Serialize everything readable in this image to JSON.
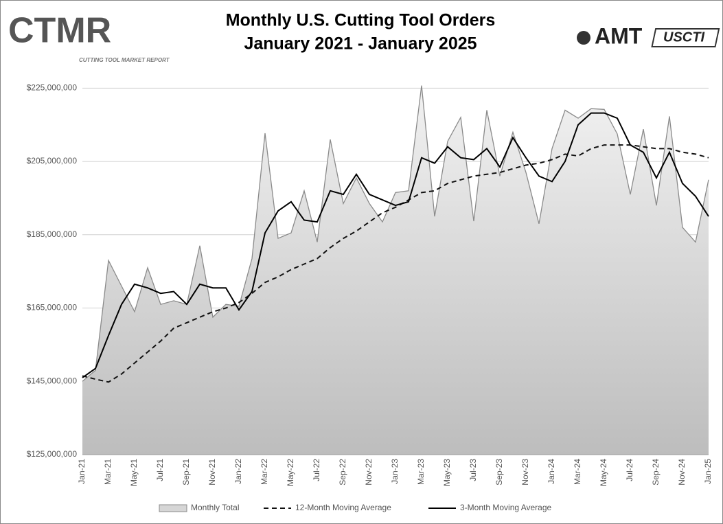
{
  "logos": {
    "left": "CTMR",
    "left_sub": "CUTTING TOOL MARKET REPORT",
    "right_1": "AMT",
    "right_2": "USCTI"
  },
  "chart_data": {
    "type": "line",
    "title": [
      "Monthly U.S. Cutting Tool Orders",
      "January 2021 - January 2025"
    ],
    "categories": [
      "Jan-21",
      null,
      "Mar-21",
      null,
      "May-21",
      null,
      "Jul-21",
      null,
      "Sep-21",
      null,
      "Nov-21",
      null,
      "Jan-22",
      null,
      "Mar-22",
      null,
      "May-22",
      null,
      "Jul-22",
      null,
      "Sep-22",
      null,
      "Nov-22",
      null,
      "Jan-23",
      null,
      "Mar-23",
      null,
      "May-23",
      null,
      "Jul-23",
      null,
      "Sep-23",
      null,
      "Nov-23",
      null,
      "Jan-24",
      null,
      "Mar-24",
      null,
      "May-24",
      null,
      "Jul-24",
      null,
      "Sep-24",
      null,
      "Nov-24",
      null,
      "Jan-25"
    ],
    "series": [
      {
        "name": "Monthly Total",
        "style": "area",
        "color": "#8a8a8a",
        "values": [
          145000000,
          148000000,
          178000000,
          171000000,
          164000000,
          176000000,
          166000000,
          167000000,
          166000000,
          182000000,
          162500000,
          166000000,
          165500000,
          178500000,
          212700000,
          184000000,
          185500000,
          197000000,
          183000000,
          211000000,
          193500000,
          200500000,
          193500000,
          188500000,
          196500000,
          197000000,
          225700000,
          190000000,
          210500000,
          217000000,
          188700000,
          219000000,
          201000000,
          213000000,
          202000000,
          188000000,
          208500000,
          219000000,
          216800000,
          219400000,
          219200000,
          212500000,
          196000000,
          213800000,
          193000000,
          217300000,
          187000000,
          183000000,
          200000000
        ]
      },
      {
        "name": "12-Month Moving Average",
        "style": "dashed",
        "color": "#111111",
        "values": [
          146500000,
          145600000,
          144800000,
          147000000,
          150000000,
          153000000,
          156000000,
          159500000,
          161000000,
          162500000,
          164000000,
          165000000,
          166500000,
          169000000,
          172000000,
          173500000,
          175500000,
          177000000,
          178500000,
          181500000,
          184000000,
          186000000,
          188500000,
          191000000,
          192500000,
          194500000,
          196500000,
          197000000,
          199000000,
          200000000,
          201000000,
          201500000,
          202000000,
          203000000,
          204000000,
          204500000,
          205500000,
          207000000,
          206500000,
          208500000,
          209500000,
          209500000,
          209500000,
          209000000,
          208500000,
          208500000,
          207500000,
          207000000,
          206000000
        ]
      },
      {
        "name": "3-Month Moving Average",
        "style": "solid",
        "color": "#000000",
        "values": [
          146000000,
          148500000,
          157500000,
          166000000,
          171500000,
          170500000,
          169000000,
          169500000,
          166000000,
          171500000,
          170500000,
          170500000,
          164500000,
          169500000,
          185500000,
          191500000,
          194000000,
          189000000,
          188500000,
          197000000,
          196000000,
          201500000,
          196000000,
          194500000,
          193000000,
          194000000,
          206000000,
          204500000,
          209000000,
          206000000,
          205500000,
          208500000,
          203500000,
          211500000,
          206000000,
          201000000,
          199500000,
          205000000,
          215000000,
          218200000,
          218200000,
          216800000,
          209500000,
          207500000,
          200500000,
          207500000,
          199000000,
          195500000,
          190000000
        ]
      }
    ],
    "ylim": [
      125000000,
      227500000
    ],
    "yticks": [
      {
        "value": 125000000,
        "label": "$125,000,000"
      },
      {
        "value": 145000000,
        "label": "$145,000,000"
      },
      {
        "value": 165000000,
        "label": "$165,000,000"
      },
      {
        "value": 185000000,
        "label": "$185,000,000"
      },
      {
        "value": 205000000,
        "label": "$205,000,000"
      },
      {
        "value": 225000000,
        "label": "$225,000,000"
      }
    ],
    "grid": true,
    "legend": "bottom"
  }
}
